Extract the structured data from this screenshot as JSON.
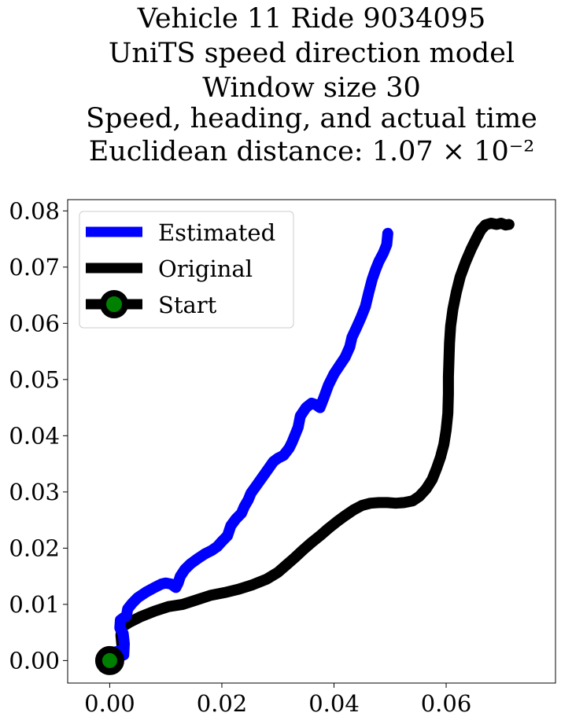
{
  "chart_data": {
    "type": "line",
    "title_lines": [
      "Vehicle 11 Ride 9034095",
      "UniTS speed direction model",
      "Window size 30",
      "Speed, heading, and actual time",
      "Euclidean distance: 1.07 × 10⁻²"
    ],
    "xlabel": "",
    "ylabel": "",
    "xlim": [
      -0.0075,
      0.0795
    ],
    "ylim": [
      -0.004,
      0.082
    ],
    "xticks": [
      0.0,
      0.02,
      0.04,
      0.06
    ],
    "xtick_labels": [
      "0.00",
      "0.02",
      "0.04",
      "0.06"
    ],
    "yticks": [
      0.0,
      0.01,
      0.02,
      0.03,
      0.04,
      0.05,
      0.06,
      0.07,
      0.08
    ],
    "ytick_labels": [
      "0.00",
      "0.01",
      "0.02",
      "0.03",
      "0.04",
      "0.05",
      "0.06",
      "0.07",
      "0.08"
    ],
    "grid": false,
    "legend": {
      "placement": "top-left",
      "entries": [
        "Estimated",
        "Original",
        "Start"
      ]
    },
    "series": [
      {
        "name": "Estimated",
        "color": "#0000ff",
        "points": [
          [
            0.0,
            0.0
          ],
          [
            0.0008,
            0.0015
          ],
          [
            0.0022,
            0.0018
          ],
          [
            0.0025,
            0.001
          ],
          [
            0.0026,
            0.003
          ],
          [
            0.0024,
            0.0048
          ],
          [
            0.0018,
            0.0058
          ],
          [
            0.0019,
            0.0072
          ],
          [
            0.003,
            0.008
          ],
          [
            0.0032,
            0.0092
          ],
          [
            0.004,
            0.0102
          ],
          [
            0.005,
            0.0112
          ],
          [
            0.0065,
            0.0122
          ],
          [
            0.008,
            0.013
          ],
          [
            0.0092,
            0.0136
          ],
          [
            0.01,
            0.0138
          ],
          [
            0.011,
            0.0136
          ],
          [
            0.0118,
            0.013
          ],
          [
            0.0122,
            0.0138
          ],
          [
            0.0126,
            0.015
          ],
          [
            0.0134,
            0.0162
          ],
          [
            0.0144,
            0.0172
          ],
          [
            0.0158,
            0.0182
          ],
          [
            0.017,
            0.019
          ],
          [
            0.0182,
            0.0196
          ],
          [
            0.0192,
            0.0203
          ],
          [
            0.02,
            0.0212
          ],
          [
            0.021,
            0.0222
          ],
          [
            0.0216,
            0.024
          ],
          [
            0.0225,
            0.0252
          ],
          [
            0.0235,
            0.0262
          ],
          [
            0.024,
            0.0274
          ],
          [
            0.0247,
            0.0286
          ],
          [
            0.0252,
            0.0298
          ],
          [
            0.0262,
            0.0312
          ],
          [
            0.0272,
            0.0326
          ],
          [
            0.0282,
            0.034
          ],
          [
            0.0292,
            0.0354
          ],
          [
            0.03,
            0.036
          ],
          [
            0.031,
            0.0365
          ],
          [
            0.032,
            0.0378
          ],
          [
            0.0325,
            0.0388
          ],
          [
            0.033,
            0.04
          ],
          [
            0.0336,
            0.0415
          ],
          [
            0.034,
            0.0435
          ],
          [
            0.035,
            0.045
          ],
          [
            0.036,
            0.0458
          ],
          [
            0.0368,
            0.0455
          ],
          [
            0.0375,
            0.045
          ],
          [
            0.0382,
            0.0468
          ],
          [
            0.039,
            0.049
          ],
          [
            0.04,
            0.051
          ],
          [
            0.041,
            0.0525
          ],
          [
            0.042,
            0.054
          ],
          [
            0.0428,
            0.0558
          ],
          [
            0.0432,
            0.0575
          ],
          [
            0.044,
            0.0592
          ],
          [
            0.0448,
            0.061
          ],
          [
            0.0456,
            0.063
          ],
          [
            0.0462,
            0.0655
          ],
          [
            0.0468,
            0.0678
          ],
          [
            0.0474,
            0.0695
          ],
          [
            0.048,
            0.071
          ],
          [
            0.0488,
            0.0725
          ],
          [
            0.0494,
            0.074
          ],
          [
            0.0496,
            0.076
          ]
        ]
      },
      {
        "name": "Original",
        "color": "#000000",
        "points": [
          [
            0.0,
            0.0
          ],
          [
            0.001,
            0.0004
          ],
          [
            0.0022,
            0.001
          ],
          [
            0.0022,
            0.0025
          ],
          [
            0.002,
            0.0045
          ],
          [
            0.0022,
            0.006
          ],
          [
            0.0035,
            0.0068
          ],
          [
            0.0055,
            0.0078
          ],
          [
            0.008,
            0.0088
          ],
          [
            0.0105,
            0.0096
          ],
          [
            0.013,
            0.01
          ],
          [
            0.0155,
            0.0108
          ],
          [
            0.018,
            0.0116
          ],
          [
            0.0205,
            0.0121
          ],
          [
            0.023,
            0.0127
          ],
          [
            0.0255,
            0.0135
          ],
          [
            0.028,
            0.0145
          ],
          [
            0.03,
            0.0157
          ],
          [
            0.0315,
            0.017
          ],
          [
            0.033,
            0.0183
          ],
          [
            0.0345,
            0.0197
          ],
          [
            0.036,
            0.021
          ],
          [
            0.0375,
            0.0222
          ],
          [
            0.039,
            0.0235
          ],
          [
            0.0405,
            0.0247
          ],
          [
            0.042,
            0.0258
          ],
          [
            0.0435,
            0.0268
          ],
          [
            0.045,
            0.0276
          ],
          [
            0.0465,
            0.028
          ],
          [
            0.048,
            0.0281
          ],
          [
            0.0495,
            0.0281
          ],
          [
            0.051,
            0.028
          ],
          [
            0.0525,
            0.0281
          ],
          [
            0.054,
            0.0284
          ],
          [
            0.0552,
            0.0292
          ],
          [
            0.0564,
            0.0305
          ],
          [
            0.0575,
            0.0322
          ],
          [
            0.0583,
            0.0342
          ],
          [
            0.059,
            0.0362
          ],
          [
            0.0596,
            0.0385
          ],
          [
            0.06,
            0.041
          ],
          [
            0.0603,
            0.044
          ],
          [
            0.0604,
            0.0475
          ],
          [
            0.0604,
            0.0505
          ],
          [
            0.0605,
            0.0535
          ],
          [
            0.0606,
            0.0565
          ],
          [
            0.0608,
            0.0595
          ],
          [
            0.0612,
            0.0625
          ],
          [
            0.0618,
            0.0655
          ],
          [
            0.0625,
            0.0683
          ],
          [
            0.0635,
            0.071
          ],
          [
            0.0645,
            0.0733
          ],
          [
            0.0655,
            0.0753
          ],
          [
            0.0662,
            0.0766
          ],
          [
            0.067,
            0.0775
          ],
          [
            0.068,
            0.0778
          ],
          [
            0.069,
            0.0776
          ],
          [
            0.0698,
            0.0778
          ],
          [
            0.0706,
            0.0775
          ],
          [
            0.0712,
            0.0776
          ]
        ]
      }
    ],
    "start_point": {
      "name": "Start",
      "x": 0.0,
      "y": 0.0,
      "edge_color": "#000000",
      "face_color": "#008000"
    }
  }
}
